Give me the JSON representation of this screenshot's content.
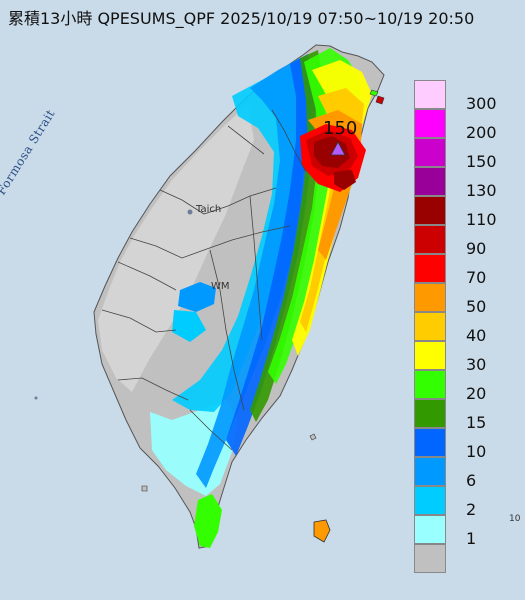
{
  "title": "累積13小時 QPESUMS_QPF 2025/10/19 07:50~10/19 20:50",
  "map": {
    "strait_label": "Formosa Strait",
    "places": [
      "Taich",
      "WM"
    ],
    "max_marker": {
      "label": "150",
      "color": "#b25cff",
      "shape": "triangle"
    },
    "right_edge_label": "10"
  },
  "legend": {
    "levels": [
      {
        "label": "300",
        "color": "#ffccff"
      },
      {
        "label": "200",
        "color": "#ff00ff"
      },
      {
        "label": "150",
        "color": "#cc00cc"
      },
      {
        "label": "130",
        "color": "#990099"
      },
      {
        "label": "110",
        "color": "#990000"
      },
      {
        "label": "90",
        "color": "#cc0000"
      },
      {
        "label": "70",
        "color": "#ff0000"
      },
      {
        "label": "50",
        "color": "#ff9900"
      },
      {
        "label": "40",
        "color": "#ffcc00"
      },
      {
        "label": "30",
        "color": "#ffff00"
      },
      {
        "label": "20",
        "color": "#33ff00"
      },
      {
        "label": "15",
        "color": "#339900"
      },
      {
        "label": "10",
        "color": "#0066ff"
      },
      {
        "label": "6",
        "color": "#0099ff"
      },
      {
        "label": "2",
        "color": "#00ccff"
      },
      {
        "label": "1",
        "color": "#99ffff"
      },
      {
        "label": "",
        "color": "#c0c0c0"
      }
    ]
  }
}
